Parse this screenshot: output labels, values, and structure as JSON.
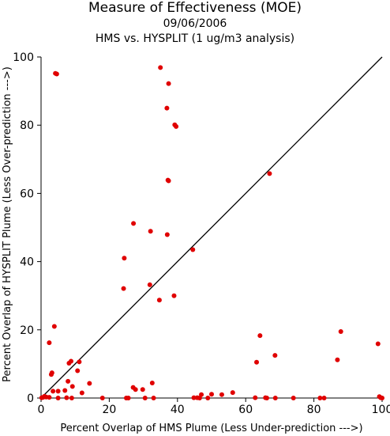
{
  "title": "Measure of Effectiveness (MOE)",
  "date": "09/06/2006",
  "subtitle": "HMS vs. HYSPLIT  (1 ug/m3 analysis)",
  "colors": {
    "points": "#e00000",
    "axes": "#000000",
    "diagonal": "#000000"
  },
  "chart_data": {
    "type": "scatter",
    "title": "Measure of Effectiveness (MOE)",
    "subtitle": "09/06/2006 — HMS vs. HYSPLIT  (1 ug/m3 analysis)",
    "xlabel": "Percent Overlap of HMS Plume (Less Under-prediction --->)",
    "ylabel": "Percent Overlap of HYSPLIT Plume (Less Over-prediction --->)",
    "xlim": [
      0,
      100
    ],
    "ylim": [
      0,
      100
    ],
    "xticks": [
      0,
      20,
      40,
      60,
      80,
      100
    ],
    "yticks": [
      0,
      20,
      40,
      60,
      80,
      100
    ],
    "grid": false,
    "reference_line": "y = x",
    "series": [
      {
        "points": [
          [
            4.2,
            95.2
          ],
          [
            4.6,
            95.0
          ],
          [
            35.0,
            96.9
          ],
          [
            37.4,
            92.2
          ],
          [
            36.9,
            85.0
          ],
          [
            39.2,
            80.1
          ],
          [
            39.6,
            79.6
          ],
          [
            37.2,
            63.9
          ],
          [
            37.4,
            63.7
          ],
          [
            67.0,
            65.8
          ],
          [
            27.1,
            51.2
          ],
          [
            32.1,
            48.9
          ],
          [
            37.0,
            47.9
          ],
          [
            44.5,
            43.5
          ],
          [
            24.4,
            41.0
          ],
          [
            31.9,
            33.2
          ],
          [
            24.2,
            32.1
          ],
          [
            39.0,
            30.0
          ],
          [
            34.7,
            28.7
          ],
          [
            3.9,
            21.0
          ],
          [
            87.9,
            19.5
          ],
          [
            64.2,
            18.3
          ],
          [
            2.4,
            16.2
          ],
          [
            98.8,
            15.9
          ],
          [
            68.6,
            12.5
          ],
          [
            86.9,
            11.2
          ],
          [
            63.2,
            10.5
          ],
          [
            11.2,
            10.6
          ],
          [
            8.8,
            10.8
          ],
          [
            8.2,
            10.2
          ],
          [
            3.2,
            7.4
          ],
          [
            3.0,
            6.9
          ],
          [
            10.7,
            8.0
          ],
          [
            7.9,
            4.9
          ],
          [
            14.2,
            4.3
          ],
          [
            32.6,
            4.4
          ],
          [
            9.2,
            3.4
          ],
          [
            27.0,
            3.1
          ],
          [
            27.7,
            2.5
          ],
          [
            29.8,
            2.5
          ],
          [
            3.5,
            2.0
          ],
          [
            5.0,
            2.0
          ],
          [
            7.0,
            2.2
          ],
          [
            12.0,
            1.5
          ],
          [
            56.2,
            1.6
          ],
          [
            50.0,
            1.1
          ],
          [
            47.0,
            1.0
          ],
          [
            53.0,
            1.0
          ],
          [
            0.2,
            0.1
          ],
          [
            0.6,
            0.2
          ],
          [
            1.0,
            0.5
          ],
          [
            1.5,
            0.3
          ],
          [
            2.4,
            0.2
          ],
          [
            5.0,
            0.0
          ],
          [
            7.5,
            0.1
          ],
          [
            9.0,
            0.0
          ],
          [
            18.0,
            0.0
          ],
          [
            25.0,
            0.0
          ],
          [
            25.6,
            0.0
          ],
          [
            30.5,
            0.0
          ],
          [
            33.0,
            0.0
          ],
          [
            44.8,
            0.1
          ],
          [
            45.8,
            0.1
          ],
          [
            46.5,
            0.0
          ],
          [
            48.9,
            0.0
          ],
          [
            62.8,
            0.1
          ],
          [
            65.8,
            0.1
          ],
          [
            66.2,
            0.0
          ],
          [
            68.7,
            0.0
          ],
          [
            74.0,
            0.0
          ],
          [
            81.8,
            0.0
          ],
          [
            83.0,
            0.0
          ],
          [
            99.2,
            0.4
          ],
          [
            99.6,
            0.1
          ],
          [
            100.0,
            0.0
          ]
        ]
      }
    ]
  }
}
